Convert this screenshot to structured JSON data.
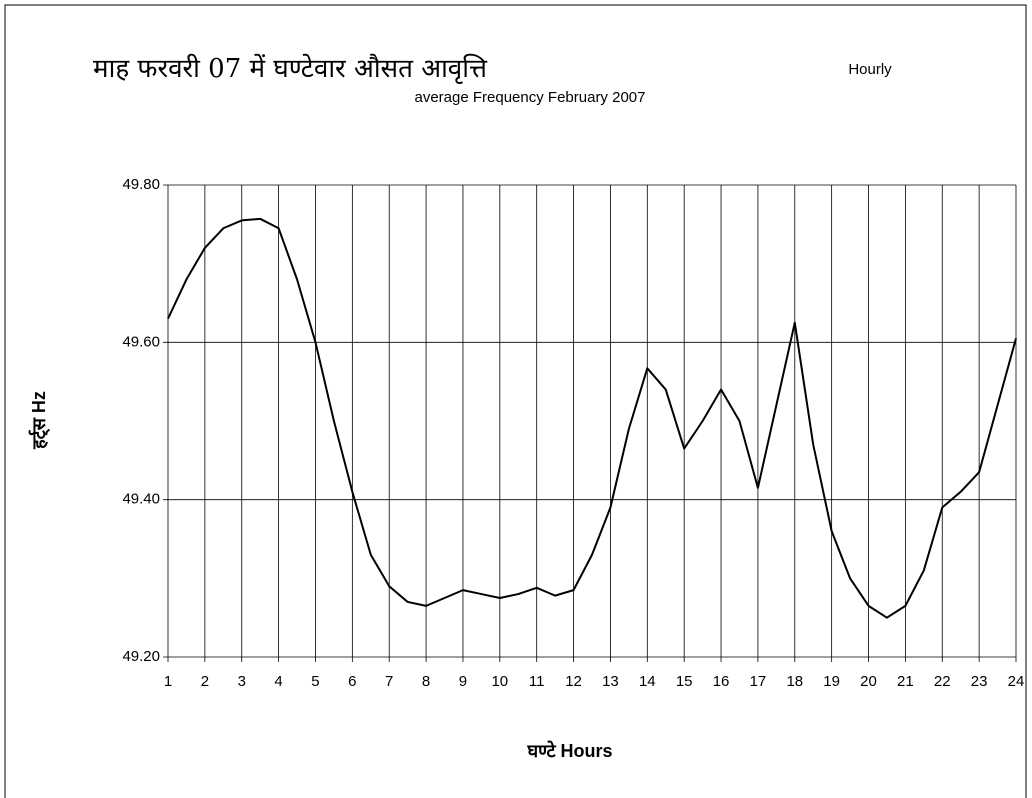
{
  "chart_data": {
    "type": "line",
    "title": "माह फरवरी 07 में घण्टेवार औसत आवृत्ति",
    "title_right": "Hourly",
    "subtitle": "average Frequency February 2007",
    "x_label": "घण्टे Hours",
    "y_label": "हर्ट्स Hz",
    "xlim": [
      1,
      24
    ],
    "xticks": [
      1,
      2,
      3,
      4,
      5,
      6,
      7,
      8,
      9,
      10,
      11,
      12,
      13,
      14,
      15,
      16,
      17,
      18,
      19,
      20,
      21,
      22,
      23,
      24
    ],
    "ylim": [
      49.2,
      49.8
    ],
    "yticks": [
      {
        "value": 49.2,
        "label": "49.20"
      },
      {
        "value": 49.4,
        "label": "49.40"
      },
      {
        "value": 49.6,
        "label": "49.60"
      },
      {
        "value": 49.8,
        "label": "49.80"
      }
    ],
    "grid": true,
    "x": [
      1,
      1.5,
      2,
      2.5,
      3,
      3.5,
      4,
      4.5,
      5,
      5.5,
      6,
      6.5,
      7,
      7.5,
      8,
      8.5,
      9,
      9.5,
      10,
      10.5,
      11,
      11.5,
      12,
      12.5,
      13,
      13.5,
      14,
      14.5,
      15,
      15.5,
      16,
      16.5,
      17,
      17.5,
      18,
      18.5,
      19,
      19.5,
      20,
      20.5,
      21,
      21.5,
      22,
      22.5,
      23,
      23.5,
      24
    ],
    "series": [
      {
        "color": "#000000",
        "values": [
          49.63,
          49.68,
          49.72,
          49.745,
          49.755,
          49.757,
          49.745,
          49.68,
          49.6,
          49.5,
          49.41,
          49.33,
          49.29,
          49.27,
          49.265,
          49.275,
          49.285,
          49.28,
          49.275,
          49.28,
          49.288,
          49.278,
          49.285,
          49.33,
          49.39,
          49.49,
          49.567,
          49.54,
          49.465,
          49.5,
          49.54,
          49.5,
          49.415,
          49.52,
          49.625,
          49.47,
          49.36,
          49.3,
          49.265,
          49.25,
          49.265,
          49.31,
          49.39,
          49.41,
          49.435,
          49.52,
          49.605
        ]
      }
    ]
  }
}
